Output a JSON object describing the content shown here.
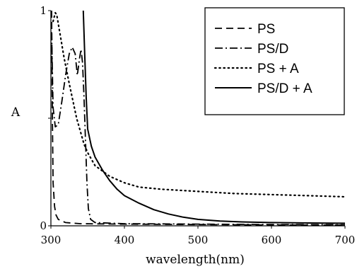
{
  "chart_data": {
    "type": "line",
    "title": "",
    "xlabel": "wavelength(nm)",
    "ylabel": "A",
    "xlim": [
      300,
      700
    ],
    "ylim": [
      0,
      1
    ],
    "x_ticks": [
      300,
      400,
      500,
      600,
      700
    ],
    "x_tick_labels": [
      "300",
      "400",
      "500",
      "600",
      "700"
    ],
    "y_ticks": [
      0,
      0.5,
      1
    ],
    "y_tick_labels": [
      "0",
      "",
      "1"
    ],
    "grid": false,
    "legend_position": "top-right",
    "series": [
      {
        "name": "PS",
        "style": "dashed",
        "points": [
          [
            301,
            1.0
          ],
          [
            302,
            0.5
          ],
          [
            303,
            0.2
          ],
          [
            305,
            0.09
          ],
          [
            307,
            0.05
          ],
          [
            310,
            0.03
          ],
          [
            320,
            0.015
          ],
          [
            340,
            0.01
          ],
          [
            400,
            0.008
          ],
          [
            500,
            0.006
          ],
          [
            600,
            0.004
          ],
          [
            700,
            0.003
          ]
        ]
      },
      {
        "name": "PS/D",
        "style": "dash-dot",
        "points": [
          [
            301,
            0.9
          ],
          [
            303,
            0.55
          ],
          [
            306,
            0.46
          ],
          [
            310,
            0.47
          ],
          [
            315,
            0.58
          ],
          [
            320,
            0.7
          ],
          [
            325,
            0.8
          ],
          [
            329,
            0.83
          ],
          [
            333,
            0.8
          ],
          [
            336,
            0.7
          ],
          [
            339,
            0.78
          ],
          [
            341,
            0.82
          ],
          [
            343,
            0.76
          ],
          [
            345,
            0.6
          ],
          [
            347,
            0.4
          ],
          [
            349,
            0.2
          ],
          [
            351,
            0.08
          ],
          [
            354,
            0.03
          ],
          [
            360,
            0.015
          ],
          [
            400,
            0.01
          ],
          [
            500,
            0.008
          ],
          [
            600,
            0.006
          ],
          [
            700,
            0.005
          ]
        ]
      },
      {
        "name": "PS + A",
        "style": "dotted",
        "points": [
          [
            303,
            0.95
          ],
          [
            306,
            0.99
          ],
          [
            308,
            0.98
          ],
          [
            312,
            0.9
          ],
          [
            318,
            0.78
          ],
          [
            325,
            0.66
          ],
          [
            330,
            0.58
          ],
          [
            335,
            0.5
          ],
          [
            340,
            0.44
          ],
          [
            345,
            0.38
          ],
          [
            350,
            0.34
          ],
          [
            360,
            0.28
          ],
          [
            380,
            0.23
          ],
          [
            400,
            0.2
          ],
          [
            420,
            0.18
          ],
          [
            450,
            0.17
          ],
          [
            500,
            0.16
          ],
          [
            550,
            0.15
          ],
          [
            600,
            0.145
          ],
          [
            650,
            0.14
          ],
          [
            700,
            0.135
          ]
        ]
      },
      {
        "name": "PS/D + A",
        "style": "solid",
        "points": [
          [
            344,
            1.0
          ],
          [
            346,
            0.8
          ],
          [
            348,
            0.6
          ],
          [
            350,
            0.45
          ],
          [
            355,
            0.37
          ],
          [
            360,
            0.32
          ],
          [
            370,
            0.26
          ],
          [
            380,
            0.21
          ],
          [
            390,
            0.17
          ],
          [
            400,
            0.14
          ],
          [
            420,
            0.105
          ],
          [
            440,
            0.075
          ],
          [
            460,
            0.055
          ],
          [
            480,
            0.04
          ],
          [
            500,
            0.03
          ],
          [
            530,
            0.022
          ],
          [
            560,
            0.018
          ],
          [
            600,
            0.015
          ],
          [
            650,
            0.013
          ],
          [
            700,
            0.012
          ]
        ]
      }
    ]
  }
}
